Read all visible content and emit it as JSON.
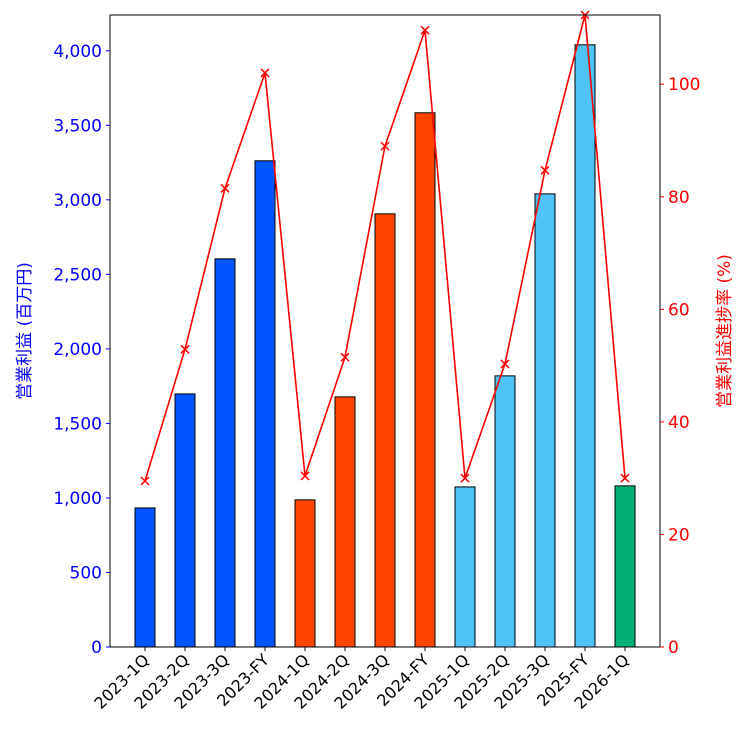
{
  "chart_data": {
    "type": "bar",
    "categories": [
      "2023-1Q",
      "2023-2Q",
      "2023-3Q",
      "2023-FY",
      "2024-1Q",
      "2024-2Q",
      "2024-3Q",
      "2024-FY",
      "2025-1Q",
      "2025-2Q",
      "2025-3Q",
      "2025-FY",
      "2026-1Q"
    ],
    "bar_colors": [
      "#0055ff",
      "#0055ff",
      "#0055ff",
      "#0055ff",
      "#ff4500",
      "#ff4500",
      "#ff4500",
      "#ff4500",
      "#4fc3f7",
      "#4fc3f7",
      "#4fc3f7",
      "#4fc3f7",
      "#00b074"
    ],
    "series": [
      {
        "axis": "left",
        "type": "bar",
        "values": [
          933,
          1698,
          2604,
          3262,
          987,
          1678,
          2906,
          3584,
          1074,
          1819,
          3040,
          4040,
          1081
        ]
      },
      {
        "axis": "right",
        "type": "line",
        "color": "#ff0000",
        "marker": "x",
        "values": [
          29.5,
          52.9,
          81.5,
          102.0,
          30.4,
          51.5,
          89.0,
          109.6,
          30.0,
          50.3,
          84.7,
          112.3,
          30.0
        ]
      }
    ],
    "ylabel": "営業利益 (百万円)",
    "ylabel_right": "営業利益進捗率 (%)",
    "ylim": [
      0,
      4240
    ],
    "ylim_right": [
      0,
      112.3
    ],
    "yticks": [
      0,
      500,
      1000,
      1500,
      2000,
      2500,
      3000,
      3500,
      4000
    ],
    "yticks_right": [
      0,
      20,
      40,
      60,
      80,
      100
    ],
    "left_axis_color": "#0000ff",
    "right_axis_color": "#ff0000",
    "grid": false
  }
}
